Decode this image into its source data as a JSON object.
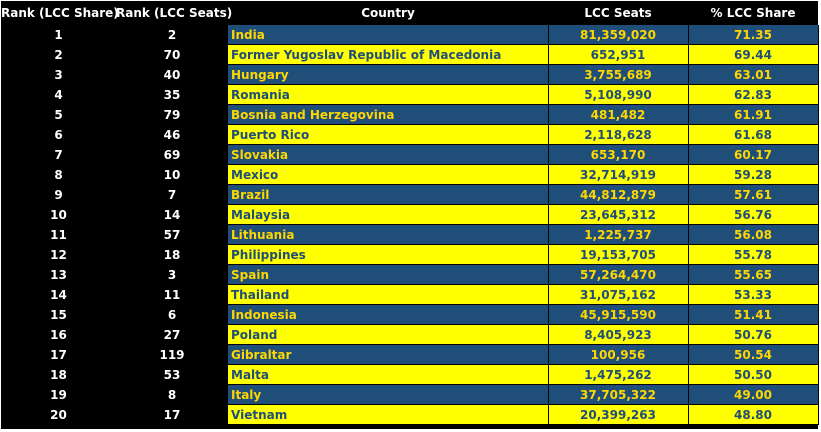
{
  "table": {
    "headers": [
      "Rank (LCC Share)",
      "Rank (LCC Seats)",
      "Country",
      "LCC Seats",
      "% LCC Share"
    ],
    "rows": [
      {
        "rank_share": "1",
        "rank_seats": "2",
        "country": "India",
        "seats": "81,359,020",
        "share": "71.35"
      },
      {
        "rank_share": "2",
        "rank_seats": "70",
        "country": "Former Yugoslav Republic of Macedonia",
        "seats": "652,951",
        "share": "69.44"
      },
      {
        "rank_share": "3",
        "rank_seats": "40",
        "country": "Hungary",
        "seats": "3,755,689",
        "share": "63.01"
      },
      {
        "rank_share": "4",
        "rank_seats": "35",
        "country": "Romania",
        "seats": "5,108,990",
        "share": "62.83"
      },
      {
        "rank_share": "5",
        "rank_seats": "79",
        "country": "Bosnia and Herzegovina",
        "seats": "481,482",
        "share": "61.91"
      },
      {
        "rank_share": "6",
        "rank_seats": "46",
        "country": "Puerto Rico",
        "seats": "2,118,628",
        "share": "61.68"
      },
      {
        "rank_share": "7",
        "rank_seats": "69",
        "country": "Slovakia",
        "seats": "653,170",
        "share": "60.17"
      },
      {
        "rank_share": "8",
        "rank_seats": "10",
        "country": "Mexico",
        "seats": "32,714,919",
        "share": "59.28"
      },
      {
        "rank_share": "9",
        "rank_seats": "7",
        "country": "Brazil",
        "seats": "44,812,879",
        "share": "57.61"
      },
      {
        "rank_share": "10",
        "rank_seats": "14",
        "country": "Malaysia",
        "seats": "23,645,312",
        "share": "56.76"
      },
      {
        "rank_share": "11",
        "rank_seats": "57",
        "country": "Lithuania",
        "seats": "1,225,737",
        "share": "56.08"
      },
      {
        "rank_share": "12",
        "rank_seats": "18",
        "country": "Philippines",
        "seats": "19,153,705",
        "share": "55.78"
      },
      {
        "rank_share": "13",
        "rank_seats": "3",
        "country": "Spain",
        "seats": "57,264,470",
        "share": "55.65"
      },
      {
        "rank_share": "14",
        "rank_seats": "11",
        "country": "Thailand",
        "seats": "31,075,162",
        "share": "53.33"
      },
      {
        "rank_share": "15",
        "rank_seats": "6",
        "country": "Indonesia",
        "seats": "45,915,590",
        "share": "51.41"
      },
      {
        "rank_share": "16",
        "rank_seats": "27",
        "country": "Poland",
        "seats": "8,405,923",
        "share": "50.76"
      },
      {
        "rank_share": "17",
        "rank_seats": "119",
        "country": "Gibraltar",
        "seats": "100,956",
        "share": "50.54"
      },
      {
        "rank_share": "18",
        "rank_seats": "53",
        "country": "Malta",
        "seats": "1,475,262",
        "share": "50.50"
      },
      {
        "rank_share": "19",
        "rank_seats": "8",
        "country": "Italy",
        "seats": "37,705,322",
        "share": "49.00"
      },
      {
        "rank_share": "20",
        "rank_seats": "17",
        "country": "Vietnam",
        "seats": "20,399,263",
        "share": "48.80"
      }
    ]
  },
  "colors": {
    "background": "#000000",
    "band_blue": "#1f4e79",
    "band_yellow": "#ffff00",
    "text_gold": "#ffd700",
    "text_navy": "#1f4e79"
  }
}
